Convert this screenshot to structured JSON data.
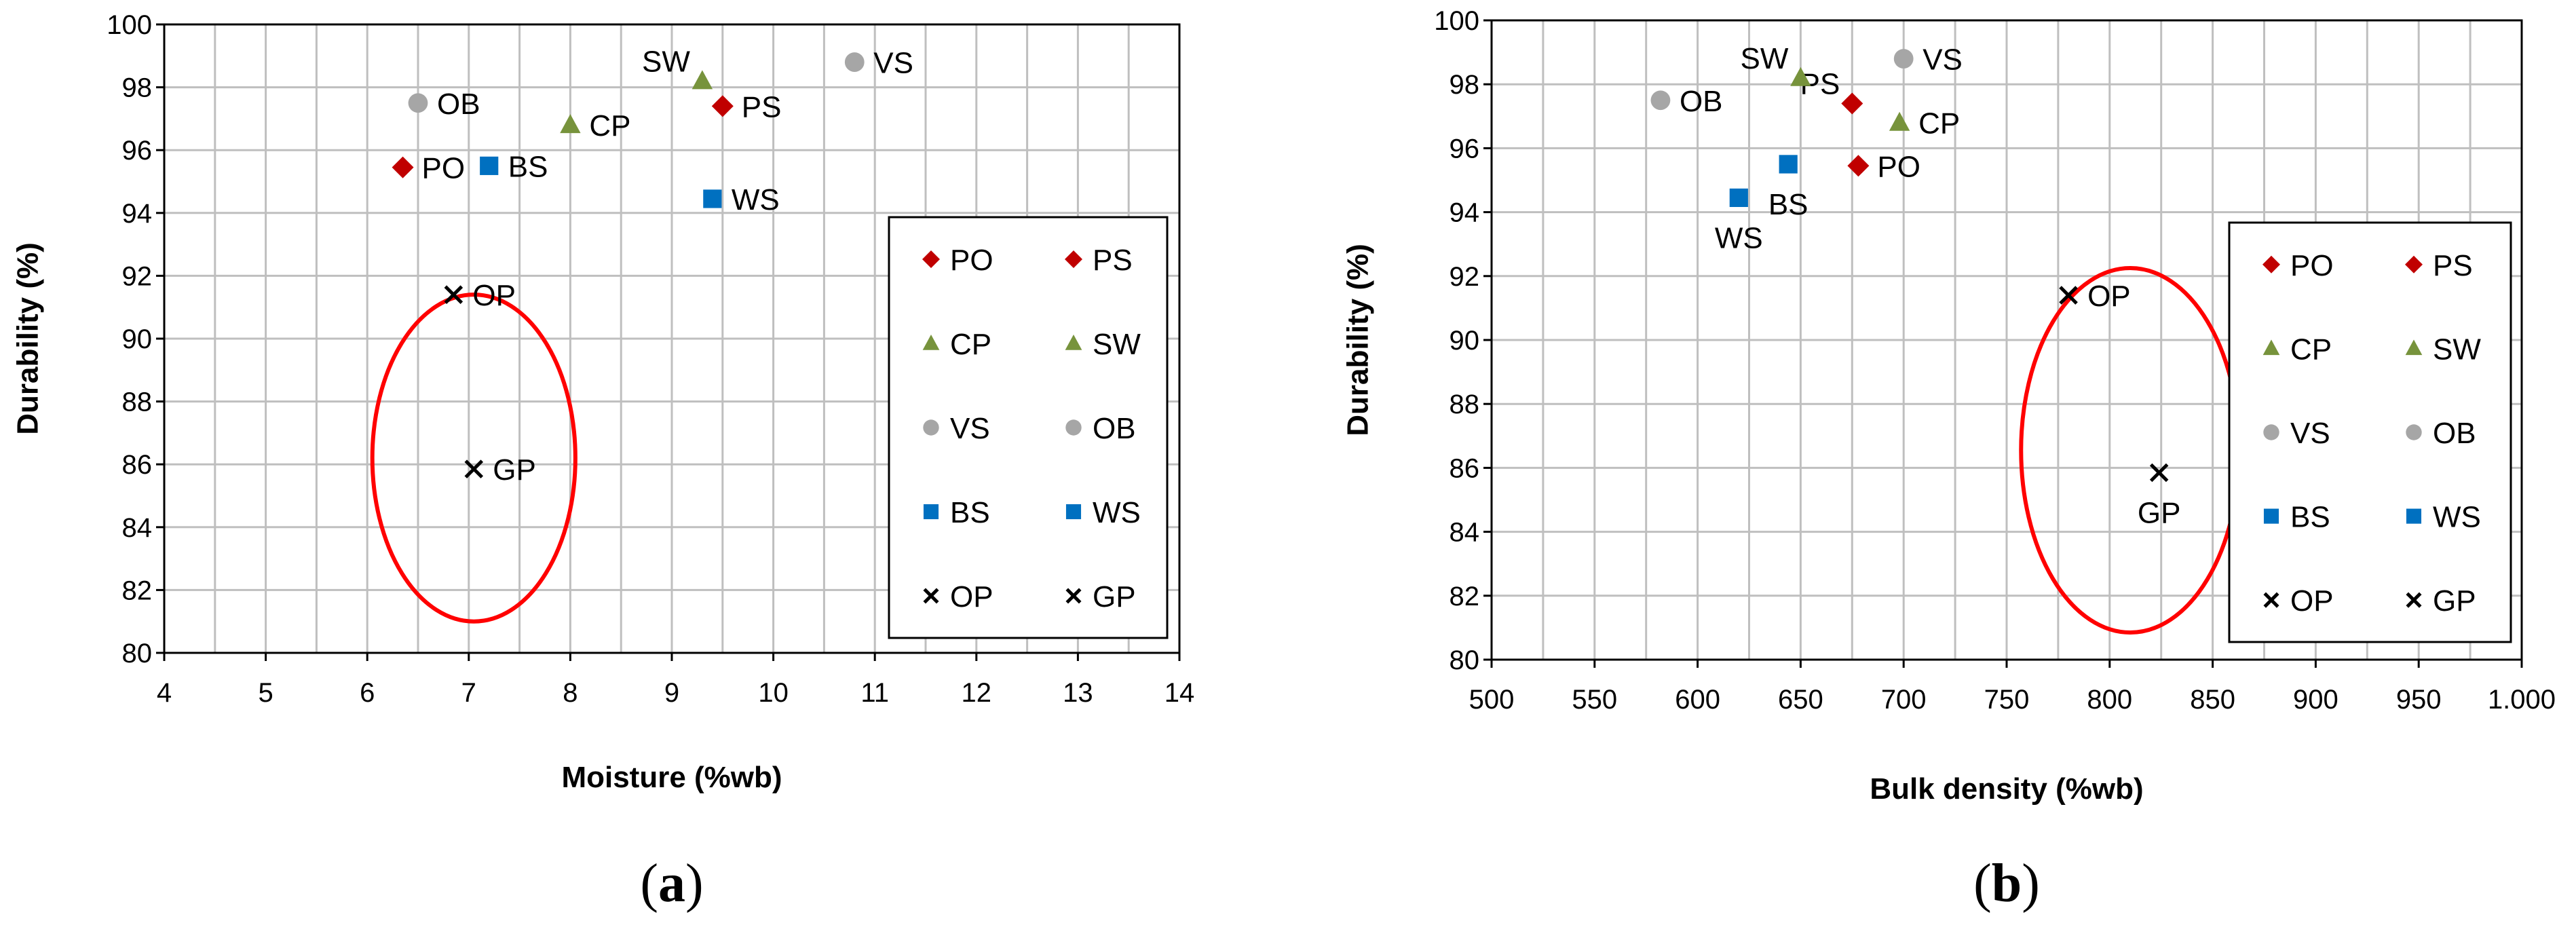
{
  "colors": {
    "PO": "#c00000",
    "PS": "#c00000",
    "CP": "#77933c",
    "SW": "#77933c",
    "VS": "#a6a6a6",
    "OB": "#a6a6a6",
    "BS": "#0070c0",
    "WS": "#0070c0",
    "OP": "#000000",
    "GP": "#000000",
    "ellipse": "#ff0000",
    "grid": "#bfbfbf"
  },
  "chart_data": [
    {
      "type": "scatter",
      "panel_label": "(a)",
      "xlabel": "Moisture (%wb)",
      "ylabel": "Durability (%)",
      "xlim": [
        4,
        14
      ],
      "ylim": [
        80,
        100
      ],
      "x_ticks": [
        "4",
        "5",
        "6",
        "7",
        "8",
        "9",
        "10",
        "11",
        "12",
        "13",
        "14"
      ],
      "y_ticks": [
        "80",
        "82",
        "84",
        "86",
        "88",
        "90",
        "92",
        "94",
        "96",
        "98",
        "100"
      ],
      "grid": true,
      "legend_position": "right-inside",
      "legend": [
        "PO",
        "PS",
        "CP",
        "SW",
        "VS",
        "OB",
        "BS",
        "WS",
        "OP",
        "GP"
      ],
      "points": [
        {
          "name": "PO",
          "x": 6.35,
          "y": 95.45,
          "marker": "diamond",
          "label_side": "right"
        },
        {
          "name": "PS",
          "x": 9.5,
          "y": 97.4,
          "marker": "diamond",
          "label_side": "right"
        },
        {
          "name": "CP",
          "x": 8.0,
          "y": 96.8,
          "marker": "triangle",
          "label_side": "right"
        },
        {
          "name": "SW",
          "x": 9.3,
          "y": 98.2,
          "marker": "triangle",
          "label_side": "left-top"
        },
        {
          "name": "VS",
          "x": 10.8,
          "y": 98.8,
          "marker": "circle",
          "label_side": "right"
        },
        {
          "name": "OB",
          "x": 6.5,
          "y": 97.5,
          "marker": "circle",
          "label_side": "right"
        },
        {
          "name": "BS",
          "x": 7.2,
          "y": 95.5,
          "marker": "square",
          "label_side": "right"
        },
        {
          "name": "WS",
          "x": 9.4,
          "y": 94.45,
          "marker": "square",
          "label_side": "right"
        },
        {
          "name": "OP",
          "x": 6.85,
          "y": 91.4,
          "marker": "x",
          "label_side": "right"
        },
        {
          "name": "GP",
          "x": 7.05,
          "y": 85.85,
          "marker": "x",
          "label_side": "right"
        }
      ],
      "ellipse": {
        "cx": 7.05,
        "cy": 86.2,
        "rx": 1.0,
        "ry": 5.2
      }
    },
    {
      "type": "scatter",
      "panel_label": "(b)",
      "xlabel": "Bulk density (%wb)",
      "ylabel": "Durability (%)",
      "xlim": [
        500,
        1000
      ],
      "ylim": [
        80,
        100
      ],
      "x_ticks": [
        "500",
        "550",
        "600",
        "650",
        "700",
        "750",
        "800",
        "850",
        "900",
        "950",
        "1.000"
      ],
      "y_ticks": [
        "80",
        "82",
        "84",
        "86",
        "88",
        "90",
        "92",
        "94",
        "96",
        "98",
        "100"
      ],
      "grid": true,
      "legend_position": "right-inside",
      "legend": [
        "PO",
        "PS",
        "CP",
        "SW",
        "VS",
        "OB",
        "BS",
        "WS",
        "OP",
        "GP"
      ],
      "points": [
        {
          "name": "PO",
          "x": 678,
          "y": 95.45,
          "marker": "diamond",
          "label_side": "right"
        },
        {
          "name": "PS",
          "x": 675,
          "y": 97.4,
          "marker": "diamond",
          "label_side": "left-top"
        },
        {
          "name": "CP",
          "x": 698,
          "y": 96.8,
          "marker": "triangle",
          "label_side": "right"
        },
        {
          "name": "SW",
          "x": 650,
          "y": 98.2,
          "marker": "triangle",
          "label_side": "left-top"
        },
        {
          "name": "VS",
          "x": 700,
          "y": 98.8,
          "marker": "circle",
          "label_side": "right"
        },
        {
          "name": "OB",
          "x": 582,
          "y": 97.5,
          "marker": "circle",
          "label_side": "right"
        },
        {
          "name": "BS",
          "x": 644,
          "y": 95.5,
          "marker": "square",
          "label_side": "below"
        },
        {
          "name": "WS",
          "x": 620,
          "y": 94.45,
          "marker": "square",
          "label_side": "below"
        },
        {
          "name": "OP",
          "x": 780,
          "y": 91.4,
          "marker": "x",
          "label_side": "right"
        },
        {
          "name": "GP",
          "x": 824,
          "y": 85.85,
          "marker": "x",
          "label_side": "below"
        }
      ],
      "ellipse": {
        "cx": 810,
        "cy": 86.55,
        "rx": 53,
        "ry": 5.7
      }
    }
  ]
}
